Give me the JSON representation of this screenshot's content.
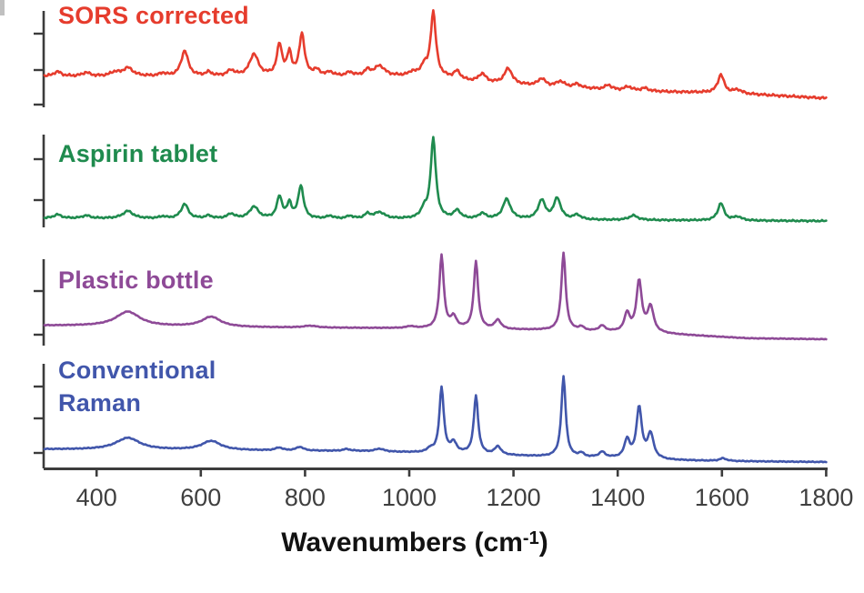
{
  "chart_data": {
    "type": "line",
    "title": "",
    "xlabel": "Wavenumbers (cm⁻¹)",
    "xlabel_main": "Wavenumbers (cm",
    "xlabel_sup": "-1",
    "xlabel_close": ")",
    "ylabel": "",
    "x_range": [
      300,
      1800
    ],
    "x_ticks": [
      400,
      600,
      800,
      1000,
      1200,
      1400,
      1600,
      1800
    ],
    "grid": "off",
    "legend_position": "labels-on-traces",
    "axis_color": "#3c3c3c",
    "tick_label_color": "#3f3f3f",
    "series": [
      {
        "name": "SORS corrected",
        "color": "#e63c2d",
        "noise": 1.6,
        "baseline": [
          [
            300,
            0
          ],
          [
            1050,
            0
          ],
          [
            1100,
            -5
          ],
          [
            1200,
            -9
          ],
          [
            1300,
            -12
          ],
          [
            1400,
            -15
          ],
          [
            1500,
            -17
          ],
          [
            1600,
            -18
          ],
          [
            1700,
            -21
          ],
          [
            1800,
            -24
          ]
        ],
        "peaks": [
          [
            325,
            5,
            9
          ],
          [
            380,
            4,
            9
          ],
          [
            435,
            4,
            10
          ],
          [
            460,
            9,
            12
          ],
          [
            527,
            3,
            7
          ],
          [
            569,
            28,
            8
          ],
          [
            615,
            4,
            7
          ],
          [
            658,
            6,
            8
          ],
          [
            702,
            24,
            10
          ],
          [
            751,
            34,
            6
          ],
          [
            770,
            24,
            5
          ],
          [
            794,
            46,
            6
          ],
          [
            822,
            6,
            8
          ],
          [
            848,
            4,
            7
          ],
          [
            886,
            4,
            7
          ],
          [
            920,
            6,
            7
          ],
          [
            943,
            11,
            12
          ],
          [
            1006,
            4,
            7
          ],
          [
            1028,
            10,
            7
          ],
          [
            1046,
            70,
            6
          ],
          [
            1092,
            9,
            8
          ],
          [
            1140,
            9,
            8
          ],
          [
            1190,
            17,
            9
          ],
          [
            1254,
            8,
            8
          ],
          [
            1290,
            6,
            9
          ],
          [
            1322,
            4,
            8
          ],
          [
            1382,
            5,
            7
          ],
          [
            1420,
            4,
            8
          ],
          [
            1452,
            3,
            8
          ],
          [
            1598,
            20,
            7
          ],
          [
            1630,
            4,
            9
          ]
        ]
      },
      {
        "name": "Aspirin tablet",
        "color": "#1f8b4e",
        "noise": 1.1,
        "baseline": [
          [
            300,
            0
          ],
          [
            1000,
            -1
          ],
          [
            1800,
            -3
          ]
        ],
        "peaks": [
          [
            325,
            4,
            9
          ],
          [
            380,
            3,
            9
          ],
          [
            460,
            8,
            12
          ],
          [
            527,
            2,
            7
          ],
          [
            569,
            16,
            8
          ],
          [
            615,
            3,
            7
          ],
          [
            658,
            5,
            8
          ],
          [
            702,
            13,
            10
          ],
          [
            751,
            24,
            6
          ],
          [
            770,
            16,
            5
          ],
          [
            792,
            36,
            6
          ],
          [
            848,
            3,
            7
          ],
          [
            886,
            3,
            7
          ],
          [
            920,
            5,
            7
          ],
          [
            943,
            7,
            12
          ],
          [
            1028,
            9,
            7
          ],
          [
            1046,
            88,
            6
          ],
          [
            1092,
            9,
            8
          ],
          [
            1140,
            6,
            8
          ],
          [
            1187,
            22,
            9
          ],
          [
            1254,
            21,
            8
          ],
          [
            1284,
            23,
            8
          ],
          [
            1322,
            5,
            8
          ],
          [
            1430,
            5,
            10
          ],
          [
            1598,
            19,
            7
          ],
          [
            1630,
            4,
            9
          ]
        ]
      },
      {
        "name": "Plastic bottle",
        "color": "#8e4a97",
        "noise": 0.5,
        "baseline": [
          [
            300,
            0
          ],
          [
            500,
            -1
          ],
          [
            700,
            -2
          ],
          [
            1000,
            -3
          ],
          [
            1250,
            -5
          ],
          [
            1450,
            -8
          ],
          [
            1550,
            -11
          ],
          [
            1650,
            -14
          ],
          [
            1800,
            -15
          ]
        ],
        "peaks": [
          [
            460,
            16,
            28
          ],
          [
            620,
            11,
            22
          ],
          [
            810,
            2,
            15
          ],
          [
            1002,
            2,
            8
          ],
          [
            1062,
            80,
            5
          ],
          [
            1085,
            12,
            7
          ],
          [
            1128,
            74,
            5
          ],
          [
            1170,
            10,
            7
          ],
          [
            1296,
            85,
            5
          ],
          [
            1330,
            4,
            6
          ],
          [
            1370,
            6,
            7
          ],
          [
            1418,
            20,
            6
          ],
          [
            1441,
            56,
            6
          ],
          [
            1463,
            28,
            7
          ]
        ]
      },
      {
        "name": "Conventional Raman",
        "color": "#4156ab",
        "noise": 0.6,
        "baseline": [
          [
            300,
            0
          ],
          [
            900,
            -2
          ],
          [
            1100,
            -5
          ],
          [
            1250,
            -8
          ],
          [
            1400,
            -10
          ],
          [
            1500,
            -12
          ],
          [
            1600,
            -13
          ],
          [
            1800,
            -14
          ]
        ],
        "peaks": [
          [
            460,
            13,
            28
          ],
          [
            620,
            10,
            22
          ],
          [
            750,
            3,
            8
          ],
          [
            790,
            4,
            8
          ],
          [
            880,
            2,
            8
          ],
          [
            943,
            3,
            10
          ],
          [
            1040,
            4,
            6
          ],
          [
            1062,
            72,
            5
          ],
          [
            1085,
            11,
            7
          ],
          [
            1128,
            64,
            5
          ],
          [
            1170,
            9,
            7
          ],
          [
            1296,
            88,
            5
          ],
          [
            1330,
            4,
            6
          ],
          [
            1370,
            6,
            7
          ],
          [
            1418,
            20,
            6
          ],
          [
            1441,
            56,
            6
          ],
          [
            1463,
            27,
            7
          ],
          [
            1602,
            3,
            8
          ]
        ]
      }
    ]
  }
}
